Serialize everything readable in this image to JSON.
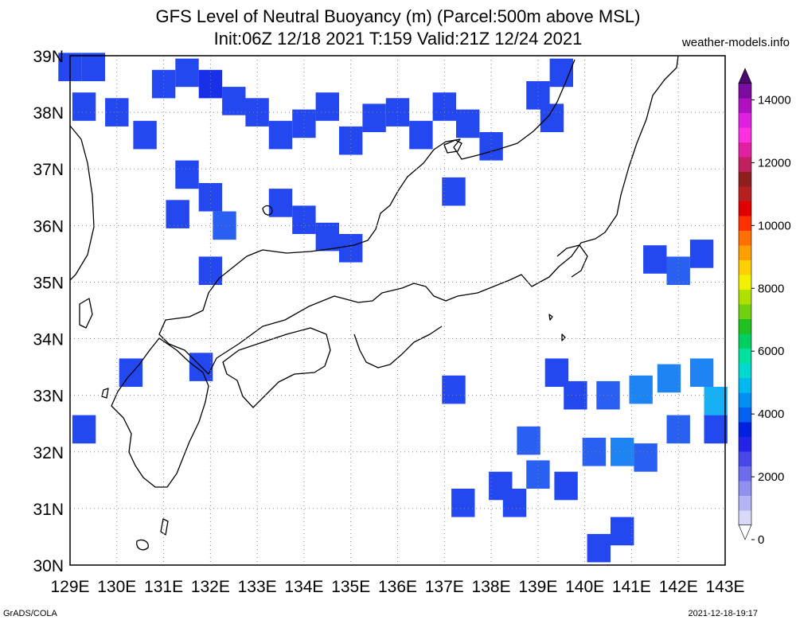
{
  "header": {
    "title_line1": "GFS Level of Neutral Buoyancy (m) (Parcel:500m above MSL)",
    "title_line2": "Init:06Z 12/18 2021 T:159 Valid:21Z 12/24 2021",
    "brand": "weather-models.info"
  },
  "footer": {
    "left": "GrADS/COLA",
    "right": "2021-12-18-19:17"
  },
  "map": {
    "lon_min": 129,
    "lon_max": 143,
    "lat_min": 30,
    "lat_max": 39,
    "lon_labels": [
      "129E",
      "130E",
      "131E",
      "132E",
      "133E",
      "134E",
      "135E",
      "136E",
      "137E",
      "138E",
      "139E",
      "140E",
      "141E",
      "142E",
      "143E"
    ],
    "lat_labels": [
      "30N",
      "31N",
      "32N",
      "33N",
      "34N",
      "35N",
      "36N",
      "37N",
      "38N",
      "39N"
    ],
    "grid_style": "dotted",
    "colors": {
      "level_1000": "#1830e8",
      "level_1500": "#2448f0",
      "level_2000": "#2a60f2",
      "level_2500": "#1e84f4",
      "level_3000": "#18b0f4",
      "coastline": "#000000"
    },
    "field": [
      {
        "lon": 129.0,
        "lat": 38.8,
        "level": 1500
      },
      {
        "lon": 129.5,
        "lat": 38.8,
        "level": 1500
      },
      {
        "lon": 129.3,
        "lat": 38.1,
        "level": 1500
      },
      {
        "lon": 130.0,
        "lat": 38.0,
        "level": 1500
      },
      {
        "lon": 130.6,
        "lat": 37.6,
        "level": 1500
      },
      {
        "lon": 131.0,
        "lat": 38.5,
        "level": 1500
      },
      {
        "lon": 131.5,
        "lat": 38.7,
        "level": 1500
      },
      {
        "lon": 132.0,
        "lat": 38.5,
        "level": 1000
      },
      {
        "lon": 132.5,
        "lat": 38.2,
        "level": 1500
      },
      {
        "lon": 133.0,
        "lat": 38.0,
        "level": 1500
      },
      {
        "lon": 133.5,
        "lat": 37.6,
        "level": 1500
      },
      {
        "lon": 134.0,
        "lat": 37.8,
        "level": 1500
      },
      {
        "lon": 134.5,
        "lat": 38.1,
        "level": 1500
      },
      {
        "lon": 135.0,
        "lat": 37.5,
        "level": 1500
      },
      {
        "lon": 135.5,
        "lat": 37.9,
        "level": 1500
      },
      {
        "lon": 136.0,
        "lat": 38.0,
        "level": 1500
      },
      {
        "lon": 136.5,
        "lat": 37.6,
        "level": 1500
      },
      {
        "lon": 137.0,
        "lat": 38.1,
        "level": 1500
      },
      {
        "lon": 137.5,
        "lat": 37.8,
        "level": 1500
      },
      {
        "lon": 138.0,
        "lat": 37.4,
        "level": 1500
      },
      {
        "lon": 139.0,
        "lat": 38.3,
        "level": 1500
      },
      {
        "lon": 139.5,
        "lat": 38.7,
        "level": 1500
      },
      {
        "lon": 139.3,
        "lat": 37.9,
        "level": 1500
      },
      {
        "lon": 131.5,
        "lat": 36.9,
        "level": 1500
      },
      {
        "lon": 132.0,
        "lat": 36.5,
        "level": 1500
      },
      {
        "lon": 132.3,
        "lat": 36.0,
        "level": 2000
      },
      {
        "lon": 133.5,
        "lat": 36.4,
        "level": 1500
      },
      {
        "lon": 134.0,
        "lat": 36.1,
        "level": 1500
      },
      {
        "lon": 134.5,
        "lat": 35.8,
        "level": 1500
      },
      {
        "lon": 135.0,
        "lat": 35.6,
        "level": 1500
      },
      {
        "lon": 131.3,
        "lat": 36.2,
        "level": 1500
      },
      {
        "lon": 132.0,
        "lat": 35.2,
        "level": 1500
      },
      {
        "lon": 131.8,
        "lat": 33.5,
        "level": 1500
      },
      {
        "lon": 130.3,
        "lat": 33.4,
        "level": 1500
      },
      {
        "lon": 129.3,
        "lat": 32.4,
        "level": 1500
      },
      {
        "lon": 137.2,
        "lat": 36.6,
        "level": 1500
      },
      {
        "lon": 137.2,
        "lat": 33.1,
        "level": 1500
      },
      {
        "lon": 139.4,
        "lat": 33.4,
        "level": 1500
      },
      {
        "lon": 139.8,
        "lat": 33.0,
        "level": 1500
      },
      {
        "lon": 140.5,
        "lat": 33.0,
        "level": 2000
      },
      {
        "lon": 141.2,
        "lat": 33.1,
        "level": 2500
      },
      {
        "lon": 141.8,
        "lat": 33.3,
        "level": 2500
      },
      {
        "lon": 142.5,
        "lat": 33.4,
        "level": 2500
      },
      {
        "lon": 142.8,
        "lat": 32.9,
        "level": 3000
      },
      {
        "lon": 142.0,
        "lat": 32.4,
        "level": 2000
      },
      {
        "lon": 142.8,
        "lat": 32.4,
        "level": 1500
      },
      {
        "lon": 141.5,
        "lat": 35.4,
        "level": 1500
      },
      {
        "lon": 142.0,
        "lat": 35.2,
        "level": 2000
      },
      {
        "lon": 142.5,
        "lat": 35.5,
        "level": 1500
      },
      {
        "lon": 138.8,
        "lat": 32.2,
        "level": 2000
      },
      {
        "lon": 139.0,
        "lat": 31.6,
        "level": 2000
      },
      {
        "lon": 139.6,
        "lat": 31.4,
        "level": 1500
      },
      {
        "lon": 140.2,
        "lat": 32.0,
        "level": 2000
      },
      {
        "lon": 140.8,
        "lat": 32.0,
        "level": 2500
      },
      {
        "lon": 141.3,
        "lat": 31.9,
        "level": 2000
      },
      {
        "lon": 138.2,
        "lat": 31.4,
        "level": 1500
      },
      {
        "lon": 138.5,
        "lat": 31.1,
        "level": 1500
      },
      {
        "lon": 137.4,
        "lat": 31.1,
        "level": 1500
      },
      {
        "lon": 140.3,
        "lat": 30.3,
        "level": 1500
      },
      {
        "lon": 140.8,
        "lat": 30.6,
        "level": 1500
      }
    ]
  },
  "colorbar": {
    "labels": [
      "0",
      "2000",
      "4000",
      "6000",
      "8000",
      "10000",
      "12000",
      "14000"
    ],
    "max": 15000,
    "colors": [
      "#ffffff",
      "#d8d8f8",
      "#b4b4f2",
      "#9090ee",
      "#6c6cec",
      "#4848ea",
      "#2424e8",
      "#0020e0",
      "#0060f0",
      "#0090f4",
      "#00b8f0",
      "#00d8d0",
      "#00e0a0",
      "#00d060",
      "#20c020",
      "#70d010",
      "#b0e000",
      "#f0f000",
      "#ffd000",
      "#ffa000",
      "#ff7000",
      "#ff3000",
      "#e00000",
      "#b82020",
      "#902020",
      "#c02060",
      "#e020a0",
      "#ff30e0",
      "#e020e0",
      "#b010c0",
      "#7a0aa0",
      "#4a0870"
    ]
  }
}
